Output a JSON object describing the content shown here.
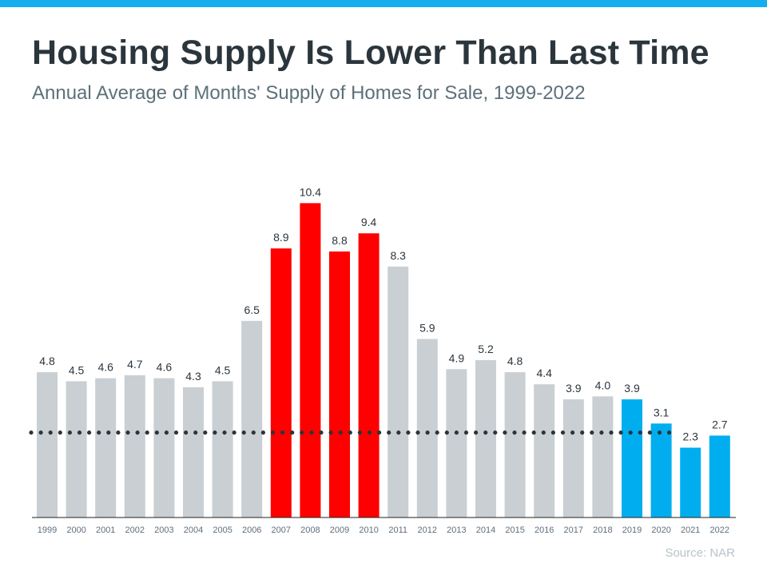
{
  "header": {
    "title": "Housing Supply Is Lower Than Last Time",
    "subtitle": "Annual Average of Months' Supply of Homes for Sale, 1999-2022"
  },
  "footer": {
    "source": "Source: NAR"
  },
  "colors": {
    "accent_bar": "#14aeef",
    "default": "#c9cfd2",
    "highlight_crash": "#ff0000",
    "highlight_recent": "#00aeef",
    "reference_line": "#2b353c"
  },
  "chart_data": {
    "type": "bar",
    "title": "Housing Supply Is Lower Than Last Time",
    "subtitle": "Annual Average of Months' Supply of Homes for Sale, 1999-2022",
    "xlabel": "",
    "ylabel": "",
    "ylim": [
      0,
      11
    ],
    "grid": false,
    "legend": "none",
    "categories": [
      "1999",
      "2000",
      "2001",
      "2002",
      "2003",
      "2004",
      "2005",
      "2006",
      "2007",
      "2008",
      "2009",
      "2010",
      "2011",
      "2012",
      "2013",
      "2014",
      "2015",
      "2016",
      "2017",
      "2018",
      "2019",
      "2020",
      "2021",
      "2022"
    ],
    "values": [
      4.8,
      4.5,
      4.6,
      4.7,
      4.6,
      4.3,
      4.5,
      6.5,
      8.9,
      10.4,
      8.8,
      9.4,
      8.3,
      5.9,
      4.9,
      5.2,
      4.8,
      4.4,
      3.9,
      4.0,
      3.9,
      3.1,
      2.3,
      2.7
    ],
    "labels": [
      "4.8",
      "4.5",
      "4.6",
      "4.7",
      "4.6",
      "4.3",
      "4.5",
      "6.5",
      "8.9",
      "10.4",
      "8.8",
      "9.4",
      "8.3",
      "5.9",
      "4.9",
      "5.2",
      "4.8",
      "4.4",
      "3.9",
      "4.0",
      "3.9",
      "3.1",
      "2.3",
      "2.7"
    ],
    "bar_colors": [
      "gray",
      "gray",
      "gray",
      "gray",
      "gray",
      "gray",
      "gray",
      "gray",
      "red",
      "red",
      "red",
      "red",
      "gray",
      "gray",
      "gray",
      "gray",
      "gray",
      "gray",
      "gray",
      "gray",
      "blue",
      "blue",
      "blue",
      "blue"
    ],
    "reference_line": {
      "value": 2.8,
      "style": "dotted"
    },
    "source": "Source: NAR"
  }
}
